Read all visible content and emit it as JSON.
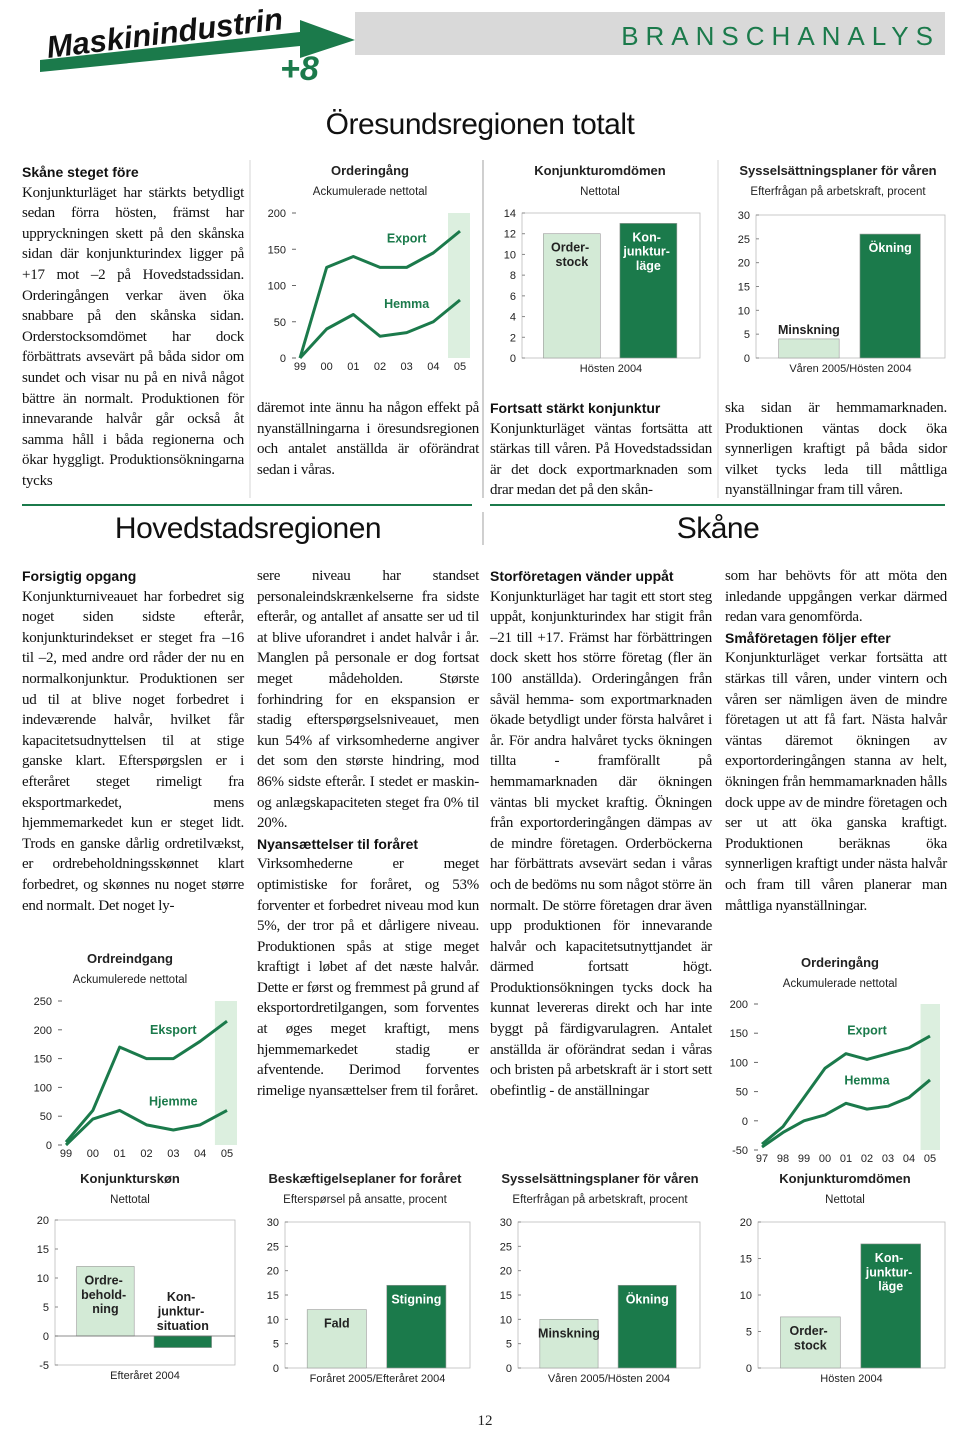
{
  "header": {
    "title": "Maskinindustrin",
    "badge": "+8",
    "section": "BRANSCHANALYS"
  },
  "sections": [
    "Öresundsregionen totalt",
    "Hovedstadsregionen",
    "Skåne"
  ],
  "columns": [
    [
      {
        "heading": "Skåne steget före"
      },
      {
        "text": "Konjunkturläget har stärkts betydligt sedan förra hösten, främst har uppryckningen skett på den skånska sidan där konjunkturindex ligger på +17 mot –2 på Hovedstadssidan. Orderingången verkar även öka snabbare på den skånska sidan. Orderstocksomdömet har dock förbättrats avsevärt på båda sidor om sundet och visar nu på en nivå något bättre än normalt. Produktionen för innevarande halvår går också åt samma håll i båda regionerna och ökar hyggligt. Produktionsökningarna tycks"
      }
    ],
    [
      {
        "text": "däremot inte ännu ha någon effekt på nyanställningarna i öresundsregionen och antalet anställda är oförändrat sedan i våras."
      }
    ],
    [
      {
        "heading": "Fortsatt stärkt konjunktur"
      },
      {
        "text": "Konjunkturläget väntas fortsätta att stärkas till våren. På Hovedstadssidan är det dock exportmarknaden som drar medan det på den skån-"
      }
    ],
    [
      {
        "text": "ska sidan är hemmamarknaden. Produktionen väntas dock öka synnerligen kraftigt på båda sidor vilket tycks leda till måttliga nyanställningar fram till våren."
      }
    ],
    [
      {
        "heading": "Forsigtig opgang"
      },
      {
        "text": "Konjunkturniveauet har forbedret sig noget siden sidste efterår, konjunkturindekset er steget fra –16 til –2, med andre ord råder der nu en normalkonjunktur. Produktionen ser ud til at blive noget forbedret i indeværende halvår, hvilket får kapacitetsudnyttelsen til at stige ganske klart. Efterspørgslen er i efteråret steget rimeligt fra eksportmarkedet, mens hjemmemarkedet kun er steget lidt. Trods en ganske dårlig ordretilvækst, er ordrebeholdningsskønnet klart forbedret, og skønnes nu noget større end normalt. Det noget ly-"
      }
    ],
    [
      {
        "text": "sere niveau har standset personaleindskrænkelserne fra sidste efterår, og antallet af ansatte ser ud til at blive uforandret i andet halvår i år. Manglen på personale er dog fortsat meget mådeholden. Største forhindring for en ekspansion er stadig efterspørgselsniveauet, men kun 54% af virksomhederne angiver det som den største hindring, mod 86% sidste efterår. I stedet er maskin- og anlægskapaciteten steget fra 0% til 20%."
      },
      {
        "heading": "Nyansættelser til foråret"
      },
      {
        "text": "Virksomhederne er meget optimistiske for foråret, og 53% forventer et forbedret niveau mod kun 5%, der tror på et dårligere niveau. Produktionen spås at stige meget kraftigt i løbet af det næste halvår. Dette er først og fremmest på grund af eksportordretilgangen, som forventes at øges meget kraftigt, mens hjemmemarkedet stadig er afventende. Derimod forventes rimelige nyansættelser frem til foråret."
      }
    ],
    [
      {
        "heading": "Storföretagen vänder uppåt"
      },
      {
        "text": "Konjunkturläget har tagit ett stort steg uppåt, konjunkturindex har stigit från –21 till +17. Främst har förbättringen dock skett hos större företag (fler än 100 anställda). Orderingången från såväl hemma- som exportmarknaden ökade betydligt under första halvåret i år. För andra halvåret tycks ökningen tillta - framförallt på hemmamarknaden där ökningen väntas bli mycket kraftig. Ökningen från exportorderingången dämpas av de mindre företagen. Orderböckerna har förbättrats avsevärt sedan i våras och de bedöms nu som något större än normalt. De större företagen drar även upp produktionen för innevarande halvår och kapacitetsutnyttjandet är därmed fortsatt högt. Produktionsökningen tycks dock ha kunnat levereras direkt och har inte byggt på färdigvarulagren. Antalet anställda är oförändrat sedan i våras och bristen på arbetskraft är i stort sett obefintlig - de anställningar"
      }
    ],
    [
      {
        "text": "som har behövts för att möta den inledande uppgången verkar därmed redan vara genomförda."
      },
      {
        "heading": "Småföretagen följer efter"
      },
      {
        "text": "Konjunkturläget verkar fortsätta att stärkas till våren, under vintern och våren ser nämligen även de mindre företagen ut att få fart. Nästa halvår väntas däremot ökningen av exportorderingången stanna av helt, ökningen från hemmamarknaden hålls dock uppe av de mindre företagen och ser ut att öka ganska kraftigt. Produktionen beräknas öka synnerligen kraftigt under nästa halvår och fram till våren planerar man måttliga nyanställningar."
      }
    ]
  ],
  "page_number": "12",
  "chart_data": [
    {
      "type": "line",
      "title": "Orderingång",
      "subtitle": "Ackumulerade nettotal",
      "categories": [
        "99",
        "00",
        "01",
        "02",
        "03",
        "04",
        "05"
      ],
      "series": [
        {
          "name": "Export",
          "color": "#1b7a4b",
          "values": [
            0,
            125,
            140,
            125,
            125,
            145,
            175
          ]
        },
        {
          "name": "Hemma",
          "color": "#1b7a4b",
          "values": [
            0,
            40,
            60,
            30,
            35,
            50,
            80
          ]
        }
      ],
      "ylim": [
        0,
        200
      ],
      "yticks": [
        0,
        50,
        100,
        150,
        200
      ]
    },
    {
      "type": "bar",
      "title": "Konjunkturomdömen",
      "subtitle": "Nettotal",
      "categories": [
        "Hösten 2004"
      ],
      "series": [
        {
          "name": "Order-\nstock",
          "color": "#d3ead6",
          "values": [
            12
          ]
        },
        {
          "name": "Kon-\njunktur-\nläge",
          "color": "#1b7a4b",
          "values": [
            13
          ]
        }
      ],
      "ylim": [
        0,
        14
      ],
      "yticks": [
        0,
        2,
        4,
        6,
        8,
        10,
        12,
        14
      ]
    },
    {
      "type": "bar",
      "title": "Sysselsättningsplaner för våren",
      "subtitle": "Efterfrågan på arbetskraft, procent",
      "categories": [
        "Våren 2005/Hösten 2004"
      ],
      "series": [
        {
          "name": "Minskning",
          "color": "#d3ead6",
          "values": [
            4
          ]
        },
        {
          "name": "Ökning",
          "color": "#1b7a4b",
          "values": [
            26
          ]
        }
      ],
      "ylim": [
        0,
        30
      ],
      "yticks": [
        0,
        5,
        10,
        15,
        20,
        25,
        30
      ]
    },
    {
      "type": "line",
      "title": "Ordreindgang",
      "subtitle": "Ackumulerede nettotal",
      "categories": [
        "99",
        "00",
        "01",
        "02",
        "03",
        "04",
        "05"
      ],
      "series": [
        {
          "name": "Eksport",
          "color": "#1b7a4b",
          "values": [
            5,
            60,
            170,
            150,
            150,
            180,
            215
          ]
        },
        {
          "name": "Hjemme",
          "color": "#1b7a4b",
          "values": [
            0,
            45,
            60,
            35,
            26,
            35,
            60
          ]
        }
      ],
      "ylim": [
        0,
        250
      ],
      "yticks": [
        0,
        50,
        100,
        150,
        200,
        250
      ]
    },
    {
      "type": "bar",
      "title": "Konjunkturskøn",
      "subtitle": "Nettotal",
      "categories": [
        "Efteråret 2004"
      ],
      "series": [
        {
          "name": "Ordre-\nbehold-\nning",
          "color": "#d3ead6",
          "values": [
            12
          ]
        },
        {
          "name": "Kon-\njunktur-\nsituation",
          "color": "#1b7a4b",
          "values": [
            -2
          ]
        }
      ],
      "ylim": [
        -5,
        20
      ],
      "yticks": [
        -5,
        0,
        5,
        10,
        15,
        20
      ]
    },
    {
      "type": "bar",
      "title": "Beskæftigelseplaner for foråret",
      "subtitle": "Efterspørsel på ansatte, procent",
      "categories": [
        "Foråret 2005/Efteråret 2004"
      ],
      "series": [
        {
          "name": "Fald",
          "color": "#d3ead6",
          "values": [
            12
          ]
        },
        {
          "name": "Stigning",
          "color": "#1b7a4b",
          "values": [
            17
          ]
        }
      ],
      "ylim": [
        0,
        30
      ],
      "yticks": [
        0,
        5,
        10,
        15,
        20,
        25,
        30
      ]
    },
    {
      "type": "bar",
      "title": "Sysselsättningsplaner för våren",
      "subtitle": "Efterfrågan på arbetskraft, procent",
      "categories": [
        "Våren 2005/Hösten 2004"
      ],
      "series": [
        {
          "name": "Minskning",
          "color": "#d3ead6",
          "values": [
            10
          ]
        },
        {
          "name": "Ökning",
          "color": "#1b7a4b",
          "values": [
            17
          ]
        }
      ],
      "ylim": [
        0,
        30
      ],
      "yticks": [
        0,
        5,
        10,
        15,
        20,
        25,
        30
      ]
    },
    {
      "type": "line",
      "title": "Orderingång",
      "subtitle": "Ackumulerade nettotal",
      "categories": [
        "97",
        "98",
        "99",
        "00",
        "01",
        "02",
        "03",
        "04",
        "05"
      ],
      "series": [
        {
          "name": "Export",
          "color": "#1b7a4b",
          "values": [
            -40,
            -10,
            40,
            90,
            115,
            105,
            115,
            125,
            145
          ]
        },
        {
          "name": "Hemma",
          "color": "#1b7a4b",
          "values": [
            -45,
            -20,
            0,
            10,
            30,
            20,
            25,
            40,
            70
          ]
        }
      ],
      "ylim": [
        -50,
        200
      ],
      "yticks": [
        -50,
        0,
        50,
        100,
        150,
        200
      ]
    },
    {
      "type": "bar",
      "title": "Konjunkturomdömen",
      "subtitle": "Nettotal",
      "categories": [
        "Hösten 2004"
      ],
      "series": [
        {
          "name": "Order-\nstock",
          "color": "#d3ead6",
          "values": [
            7
          ]
        },
        {
          "name": "Kon-\njunktur-\nläge",
          "color": "#1b7a4b",
          "values": [
            17
          ]
        }
      ],
      "ylim": [
        0,
        20
      ],
      "yticks": [
        0,
        5,
        10,
        15,
        20
      ]
    }
  ]
}
